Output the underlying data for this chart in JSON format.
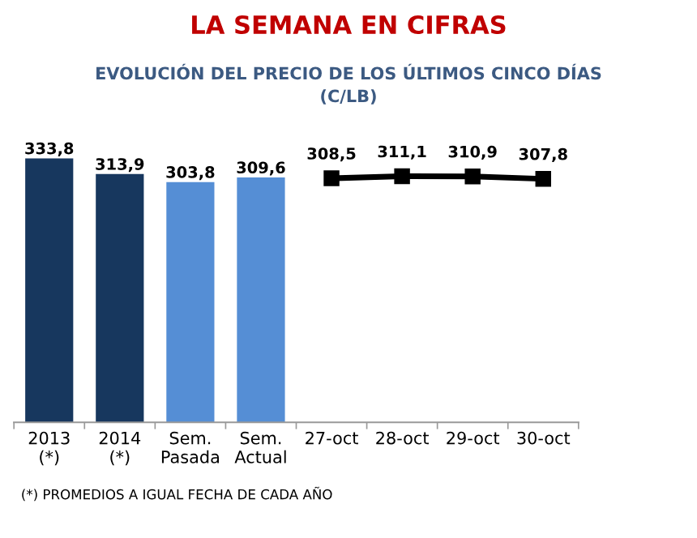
{
  "chart_data": {
    "type": "bar",
    "title": "LA SEMANA EN CIFRAS",
    "subtitle": "EVOLUCIÓN DEL PRECIO DE LOS ÚLTIMOS CINCO DÍAS\n(C/LB)",
    "categories": [
      "2013\n(*)",
      "2014\n(*)",
      "Sem.\nPasada",
      "Sem.\nActual",
      "27-oct",
      "28-oct",
      "29-oct",
      "30-oct"
    ],
    "series": [
      {
        "colors": [
          "#17375e",
          "#17375e",
          "#558ed5",
          "#558ed5",
          null,
          null,
          null,
          null
        ],
        "values": [
          333.8,
          313.9,
          303.8,
          309.6,
          null,
          null,
          null,
          null
        ],
        "value_labels": [
          "333,8",
          "313,9",
          "303,8",
          "309,6",
          null,
          null,
          null,
          null
        ]
      },
      {
        "type": "line",
        "color": "#000000",
        "marker": "square",
        "values": [
          null,
          null,
          null,
          null,
          308.5,
          311.1,
          310.9,
          307.8
        ],
        "value_labels": [
          null,
          null,
          null,
          null,
          "308,5",
          "311,1",
          "310,9",
          "307,8"
        ]
      }
    ],
    "data_labels": true,
    "grid": false,
    "legend": false,
    "annotations": [
      "(*) PROMEDIOS A IGUAL FECHA DE CADA AÑO"
    ]
  }
}
